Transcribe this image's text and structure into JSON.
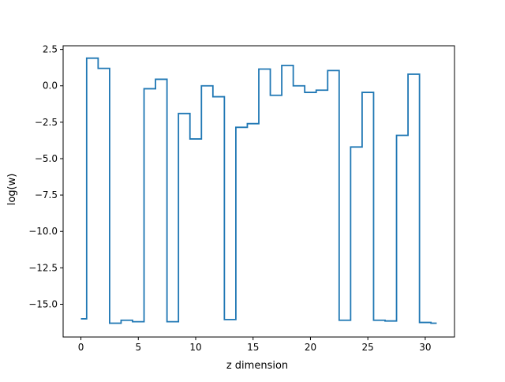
{
  "chart_data": {
    "type": "line",
    "drawstyle": "steps-mid",
    "xlabel": "z dimension",
    "ylabel": "log(w)",
    "xlim": [
      -1.55,
      32.55
    ],
    "ylim": [
      -17.25,
      2.75
    ],
    "xticks": [
      0,
      5,
      10,
      15,
      20,
      25,
      30
    ],
    "xtick_labels": [
      "0",
      "5",
      "10",
      "15",
      "20",
      "25",
      "30"
    ],
    "yticks": [
      2.5,
      0.0,
      -2.5,
      -5.0,
      -7.5,
      -10.0,
      -12.5,
      -15.0
    ],
    "ytick_labels": [
      "2.5",
      "0.0",
      "−2.5",
      "−5.0",
      "−7.5",
      "−10.0",
      "−12.5",
      "−15.0"
    ],
    "grid": false,
    "color": "#1f77b4",
    "x": [
      0,
      1,
      2,
      3,
      4,
      5,
      6,
      7,
      8,
      9,
      10,
      11,
      12,
      13,
      14,
      15,
      16,
      17,
      18,
      19,
      20,
      21,
      22,
      23,
      24,
      25,
      26,
      27,
      28,
      29,
      30,
      31
    ],
    "values": [
      -16.0,
      1.9,
      1.2,
      -16.3,
      -16.1,
      -16.2,
      -0.2,
      0.45,
      -16.2,
      -1.9,
      -3.65,
      0.0,
      -0.75,
      -16.05,
      -2.85,
      -2.6,
      1.15,
      -0.65,
      1.4,
      0.0,
      -0.45,
      -0.3,
      1.05,
      -16.1,
      -4.2,
      -0.45,
      -16.1,
      -16.15,
      -3.4,
      0.8,
      -16.25,
      -16.3
    ]
  }
}
